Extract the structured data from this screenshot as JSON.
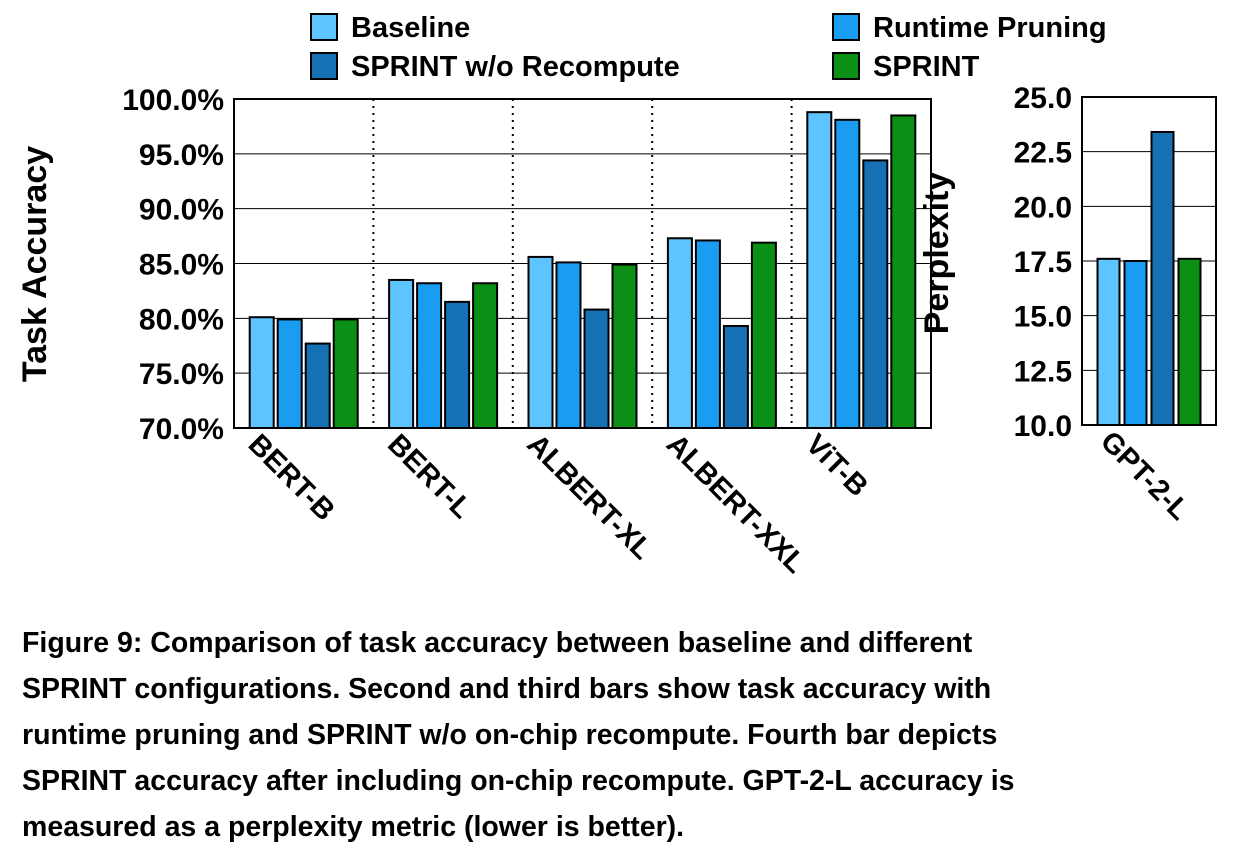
{
  "legend": {
    "items": [
      {
        "label": "Baseline",
        "color": "#5ec4ff"
      },
      {
        "label": "Runtime Pruning",
        "color": "#1a9cf0"
      },
      {
        "label": "SPRINT w/o Recompute",
        "color": "#1670b4"
      },
      {
        "label": "SPRINT",
        "color": "#0b8f14"
      }
    ]
  },
  "chart_data": [
    {
      "type": "bar",
      "ylabel": "Task Accuracy",
      "ylim": [
        70,
        100
      ],
      "yticks": [
        "70.0%",
        "75.0%",
        "80.0%",
        "85.0%",
        "90.0%",
        "95.0%",
        "100.0%"
      ],
      "ytick_values": [
        70,
        75,
        80,
        85,
        90,
        95,
        100
      ],
      "categories": [
        "BERT-B",
        "BERT-L",
        "ALBERT-XL",
        "ALBERT-XXL",
        "ViT-B"
      ],
      "grid": "horizontal",
      "series": [
        {
          "name": "Baseline",
          "values": [
            80.1,
            83.5,
            85.6,
            87.3,
            98.8
          ]
        },
        {
          "name": "Runtime Pruning",
          "values": [
            79.9,
            83.2,
            85.1,
            87.1,
            98.1
          ]
        },
        {
          "name": "SPRINT w/o Recompute",
          "values": [
            77.7,
            81.5,
            80.8,
            79.3,
            94.4
          ]
        },
        {
          "name": "SPRINT",
          "values": [
            79.9,
            83.2,
            84.9,
            86.9,
            98.5
          ]
        }
      ]
    },
    {
      "type": "bar",
      "ylabel": "Perplexity",
      "ylim": [
        10,
        25
      ],
      "yticks": [
        "10.0",
        "12.5",
        "15.0",
        "17.5",
        "20.0",
        "22.5",
        "25.0"
      ],
      "ytick_values": [
        10,
        12.5,
        15,
        17.5,
        20,
        22.5,
        25
      ],
      "categories": [
        "GPT-2-L"
      ],
      "grid": "horizontal",
      "series": [
        {
          "name": "Baseline",
          "values": [
            17.6
          ]
        },
        {
          "name": "Runtime Pruning",
          "values": [
            17.5
          ]
        },
        {
          "name": "SPRINT w/o Recompute",
          "values": [
            23.4
          ]
        },
        {
          "name": "SPRINT",
          "values": [
            17.6
          ]
        }
      ]
    }
  ],
  "caption": {
    "label": "Figure 9:",
    "line1": "Comparison of task accuracy between baseline and different",
    "line2": "SPRINT configurations. Second and third bars show task accuracy with",
    "line3": "runtime pruning and SPRINT w/o on-chip recompute. Fourth bar depicts",
    "line4": "SPRINT accuracy after including on-chip recompute. GPT-2-L accuracy is",
    "line5": "measured as a perplexity metric (lower is better)."
  }
}
